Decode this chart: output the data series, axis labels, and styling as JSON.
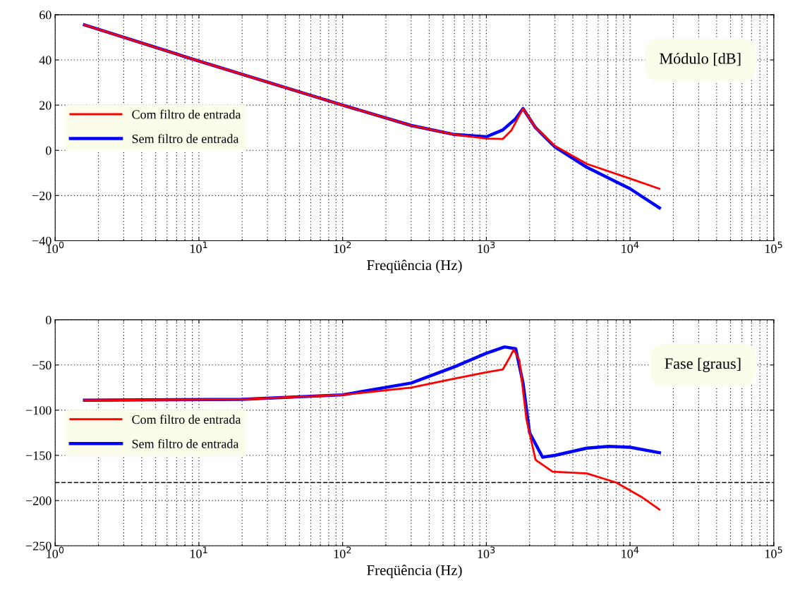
{
  "chart_data": [
    {
      "type": "line",
      "xlabel": "Freqüência (Hz)",
      "log": "x",
      "grid": true,
      "legend": "left",
      "line_style": "solid",
      "marker": "none",
      "annotations": [
        "Módulo [dB]"
      ],
      "xlim": [
        1,
        100000
      ],
      "xticks": [
        {
          "value": 1,
          "label": "10$^{0}$"
        },
        {
          "value": 10,
          "label": "10$^{1}$"
        },
        {
          "value": 100,
          "label": "10$^{2}$"
        },
        {
          "value": 1000,
          "label": "10$^{3}$"
        },
        {
          "value": 10000,
          "label": "10$^{4}$"
        },
        {
          "value": 100000,
          "label": "10$^{5}$"
        }
      ],
      "ylim": [
        -40,
        60
      ],
      "yticks": [
        {
          "value": -40,
          "label": "−40"
        },
        {
          "value": -20,
          "label": "−20"
        },
        0,
        20,
        40,
        60
      ],
      "series": [
        {
          "name": "Sem filtro de entrada",
          "color": "#0000ff",
          "x": [
            1.6,
            10,
            100,
            300,
            600,
            1000,
            1300,
            1600,
            1800,
            2200,
            3000,
            5000,
            10000,
            16000
          ],
          "values": [
            55.5,
            39.5,
            20,
            11,
            7,
            6,
            9,
            14,
            18.5,
            10,
            1.5,
            -7.5,
            -17,
            -25.5
          ]
        },
        {
          "name": "Com filtro de entrada",
          "color": "#ff0000",
          "x": [
            1.6,
            10,
            100,
            300,
            600,
            1000,
            1300,
            1500,
            1800,
            2200,
            3000,
            5000,
            10000,
            16000
          ],
          "values": [
            55.5,
            39.5,
            20,
            11,
            7,
            5.2,
            5,
            9,
            18.5,
            10,
            2,
            -6,
            -12.5,
            -17
          ]
        }
      ]
    },
    {
      "type": "line",
      "xlabel": "Freqüência (Hz)",
      "log": "x",
      "grid": true,
      "legend": "left",
      "line_style": "solid",
      "marker": "none",
      "annotations": [
        "Fase [graus]"
      ],
      "xlim": [
        1,
        100000
      ],
      "xticks": [
        {
          "value": 1,
          "label": "10$^{0}$"
        },
        {
          "value": 10,
          "label": "10$^{1}$"
        },
        {
          "value": 100,
          "label": "10$^{2}$"
        },
        {
          "value": 1000,
          "label": "10$^{3}$"
        },
        {
          "value": 10000,
          "label": "10$^{4}$"
        },
        {
          "value": 100000,
          "label": "10$^{5}$"
        }
      ],
      "ylim": [
        -250,
        0
      ],
      "yticks": [
        {
          "value": -250,
          "label": "−250"
        },
        {
          "value": -200,
          "label": "−200"
        },
        {
          "value": -150,
          "label": "−150"
        },
        {
          "value": -100,
          "label": "−100"
        },
        {
          "value": -50,
          "label": "−50"
        },
        0
      ],
      "ref_lines": [
        {
          "axis": "y",
          "value": -180,
          "color": "#000000",
          "line_style": "dashed"
        }
      ],
      "series": [
        {
          "name": "Sem filtro de entrada",
          "color": "#0000ff",
          "x": [
            1.6,
            20,
            100,
            300,
            600,
            1000,
            1340,
            1600,
            1800,
            2000,
            2460,
            3000,
            5000,
            7100,
            10000,
            16000
          ],
          "values": [
            -89,
            -88,
            -83,
            -70,
            -52,
            -37,
            -30,
            -32,
            -70,
            -125,
            -152,
            -150,
            -142,
            -140,
            -141,
            -147
          ]
        },
        {
          "name": "Com filtro de entrada",
          "color": "#ff0000",
          "x": [
            1.6,
            20,
            100,
            300,
            600,
            1000,
            1300,
            1450,
            1550,
            1700,
            1900,
            2200,
            2890,
            5000,
            8000,
            12000,
            16000
          ],
          "values": [
            -89,
            -88,
            -83,
            -75,
            -65,
            -58,
            -55,
            -42,
            -33,
            -45,
            -110,
            -155,
            -168,
            -170,
            -180,
            -196,
            -210
          ]
        }
      ]
    }
  ]
}
